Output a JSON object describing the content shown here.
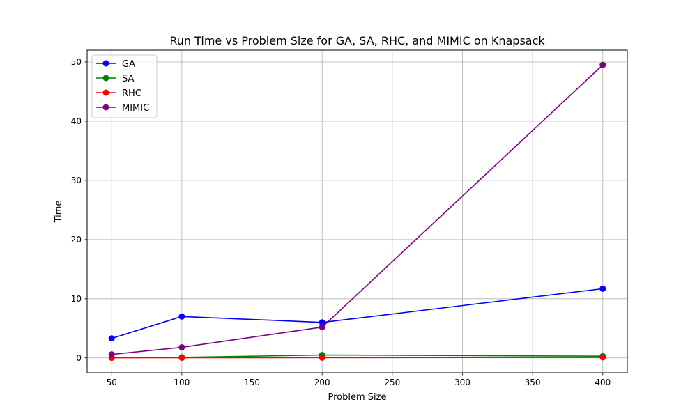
{
  "chart_data": {
    "type": "line",
    "title": "Run Time vs Problem Size for GA, SA, RHC, and MIMIC on Knapsack",
    "xlabel": "Problem Size",
    "ylabel": "Time",
    "x": [
      50,
      100,
      200,
      400
    ],
    "xlim": [
      32.5,
      417.5
    ],
    "ylim": [
      -2.5,
      52.0
    ],
    "xticks": [
      50,
      100,
      150,
      200,
      250,
      300,
      350,
      400
    ],
    "yticks": [
      0,
      10,
      20,
      30,
      40,
      50
    ],
    "grid": true,
    "legend_position": "upper-left",
    "series": [
      {
        "name": "GA",
        "color": "#0000ff",
        "values": [
          3.3,
          7.0,
          6.0,
          11.7
        ]
      },
      {
        "name": "SA",
        "color": "#008000",
        "values": [
          0.05,
          0.1,
          0.5,
          0.3
        ]
      },
      {
        "name": "RHC",
        "color": "#ff0000",
        "values": [
          0.02,
          0.03,
          0.05,
          0.1
        ]
      },
      {
        "name": "MIMIC",
        "color": "#800080",
        "values": [
          0.6,
          1.8,
          5.2,
          49.5
        ]
      }
    ]
  }
}
